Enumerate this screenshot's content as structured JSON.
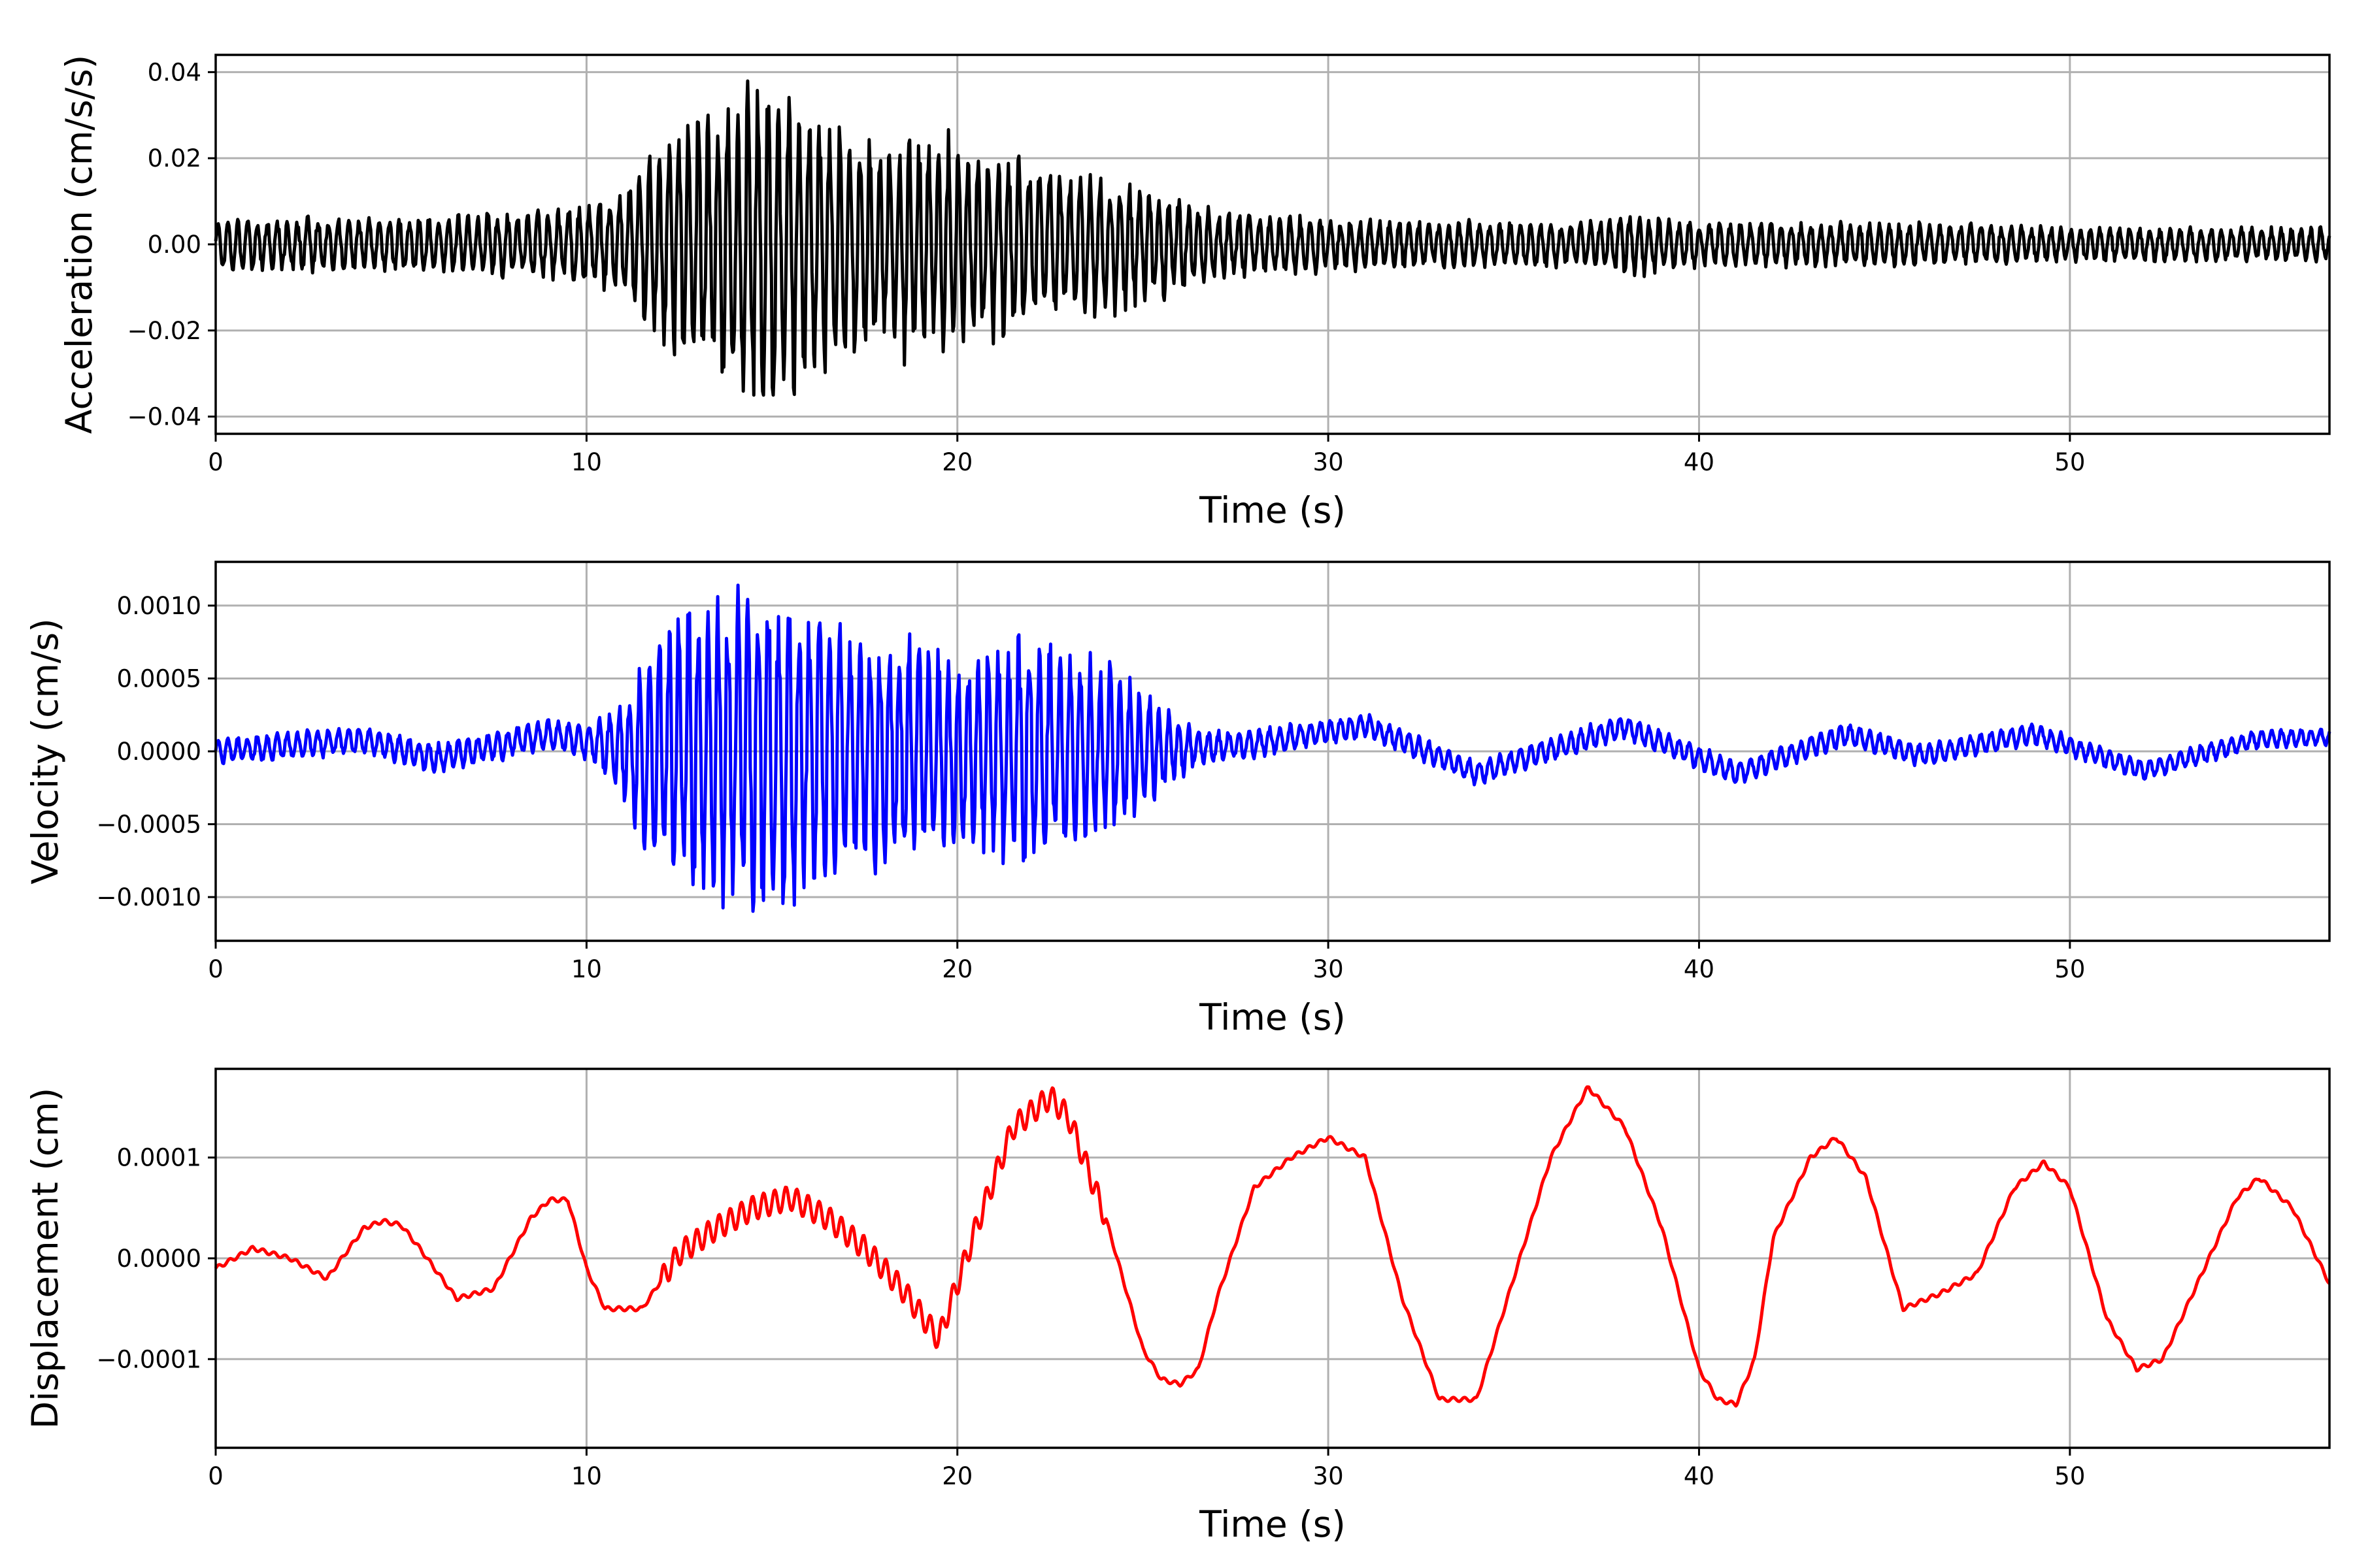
{
  "chart_data": [
    {
      "type": "line",
      "ylabel": "Acceleration (cm/s/s)",
      "xlabel": "Time (s)",
      "xlim": [
        0,
        57
      ],
      "ylim": [
        -0.044,
        0.044
      ],
      "x_ticks": [
        0,
        10,
        20,
        30,
        40,
        50
      ],
      "y_ticks": [
        -0.04,
        -0.02,
        0.0,
        0.02,
        0.04
      ],
      "x_tick_labels": [
        "0",
        "10",
        "20",
        "30",
        "40",
        "50"
      ],
      "y_tick_labels": [
        "−0.04",
        "−0.02",
        "0.00",
        "0.02",
        "0.04"
      ],
      "grid": true,
      "color": "#000000",
      "envelope": {
        "x": [
          0,
          5,
          9,
          10,
          11,
          12,
          13,
          14,
          15,
          16,
          17,
          18,
          19,
          20,
          21,
          22,
          23,
          24,
          25,
          26,
          27,
          28,
          30,
          33,
          37,
          38,
          40,
          45,
          50,
          57
        ],
        "amplitude": [
          0.006,
          0.006,
          0.008,
          0.009,
          0.012,
          0.022,
          0.03,
          0.034,
          0.038,
          0.03,
          0.026,
          0.022,
          0.025,
          0.022,
          0.022,
          0.018,
          0.016,
          0.016,
          0.013,
          0.01,
          0.008,
          0.007,
          0.006,
          0.005,
          0.005,
          0.007,
          0.005,
          0.005,
          0.004,
          0.004
        ]
      },
      "dominant_period_s": 0.25,
      "min_value": -0.035,
      "max_value": 0.04
    },
    {
      "type": "line",
      "ylabel": "Velocity (cm/s)",
      "xlabel": "Time (s)",
      "xlim": [
        0,
        57
      ],
      "ylim": [
        -0.0013,
        0.0013
      ],
      "x_ticks": [
        0,
        10,
        20,
        30,
        40,
        50
      ],
      "y_ticks": [
        -0.001,
        -0.0005,
        0.0,
        0.0005,
        0.001
      ],
      "x_tick_labels": [
        "0",
        "10",
        "20",
        "30",
        "40",
        "50"
      ],
      "y_tick_labels": [
        "−0.0010",
        "−0.0005",
        "0.0000",
        "0.0005",
        "0.0010"
      ],
      "grid": true,
      "color": "#0000ff",
      "baseline": {
        "x": [
          0,
          4,
          6,
          9,
          11,
          20,
          25,
          28,
          31,
          34,
          38,
          41,
          44,
          46,
          49,
          52,
          55,
          57
        ],
        "value": [
          0.0,
          8e-05,
          -5e-05,
          0.00012,
          0.0,
          0.0,
          0.0,
          5e-05,
          0.00018,
          -0.00015,
          0.00017,
          -0.00015,
          0.00012,
          -3e-05,
          0.00012,
          -0.00013,
          8e-05,
          0.0001
        ]
      },
      "envelope": {
        "x": [
          0,
          9,
          10,
          11,
          12,
          13,
          14,
          15,
          16,
          17,
          18,
          19,
          20,
          21,
          22,
          23,
          24,
          25,
          26,
          27,
          30,
          40,
          57
        ],
        "amplitude": [
          9e-05,
          0.0001,
          0.00012,
          0.0003,
          0.0009,
          0.001,
          0.0011,
          0.0011,
          0.00095,
          0.0008,
          0.00075,
          0.00075,
          0.00065,
          0.0007,
          0.0008,
          0.00065,
          0.0006,
          0.0004,
          0.0002,
          0.0001,
          8e-05,
          8e-05,
          6e-05
        ]
      },
      "min_value": -0.00118,
      "max_value": 0.00114
    },
    {
      "type": "line",
      "ylabel": "Displacement (cm)",
      "xlabel": "Time (s)",
      "xlim": [
        0,
        57
      ],
      "ylim": [
        -0.000188,
        0.000188
      ],
      "x_ticks": [
        0,
        10,
        20,
        30,
        40,
        50
      ],
      "y_ticks": [
        -0.0001,
        0.0,
        0.0001
      ],
      "x_tick_labels": [
        "0",
        "10",
        "20",
        "30",
        "40",
        "50"
      ],
      "y_tick_labels": [
        "−0.0001",
        "0.0000",
        "0.0001"
      ],
      "grid": true,
      "color": "#ff0000",
      "x": [
        0,
        0.5,
        1,
        2,
        3,
        4,
        4.5,
        5,
        5.5,
        6.5,
        7.5,
        8.5,
        9,
        9.5,
        10,
        10.5,
        11.5,
        12.5,
        13.5,
        14.5,
        15.5,
        16.5,
        17.5,
        18.5,
        19.5,
        20.5,
        21.5,
        22.5,
        23,
        24,
        25,
        25.5,
        26,
        26.5,
        27,
        28,
        29,
        30,
        31,
        32,
        33,
        34,
        35,
        36,
        37,
        38,
        39,
        40,
        40.5,
        41,
        41.5,
        42,
        43,
        43.7,
        44.5,
        45.5,
        46.5,
        47.5,
        48.5,
        49.3,
        50,
        51,
        51.8,
        52.5,
        53.5,
        54.5,
        55.1,
        56,
        57
      ],
      "y": [
        -1e-05,
        0.0,
        1e-05,
        0.0,
        -2e-05,
        3e-05,
        3.7e-05,
        3.3e-05,
        1e-05,
        -4e-05,
        -3e-05,
        4e-05,
        5.8e-05,
        5.8e-05,
        -1e-05,
        -5e-05,
        -5e-05,
        5e-06,
        3e-05,
        5e-05,
        6e-05,
        4e-05,
        1e-05,
        -3e-05,
        -8e-05,
        3e-05,
        0.00013,
        0.00016,
        0.00014,
        4e-05,
        -9e-05,
        -0.00012,
        -0.000125,
        -0.00011,
        -4e-05,
        7e-05,
        0.0001,
        0.00012,
        0.0001,
        -4e-05,
        -0.00014,
        -0.00014,
        -2e-05,
        0.0001,
        0.00017,
        0.00013,
        3e-05,
        -0.00011,
        -0.00014,
        -0.000145,
        -0.0001,
        2e-05,
        0.0001,
        0.00012,
        8e-05,
        -5e-05,
        -3.5e-05,
        -1.5e-05,
        7e-05,
        9.5e-05,
        7e-05,
        -6e-05,
        -0.00011,
        -0.0001,
        -2e-05,
        6e-05,
        8e-05,
        5e-05,
        -2.5e-05
      ],
      "min_value": -0.00015,
      "max_value": 0.00017
    }
  ]
}
